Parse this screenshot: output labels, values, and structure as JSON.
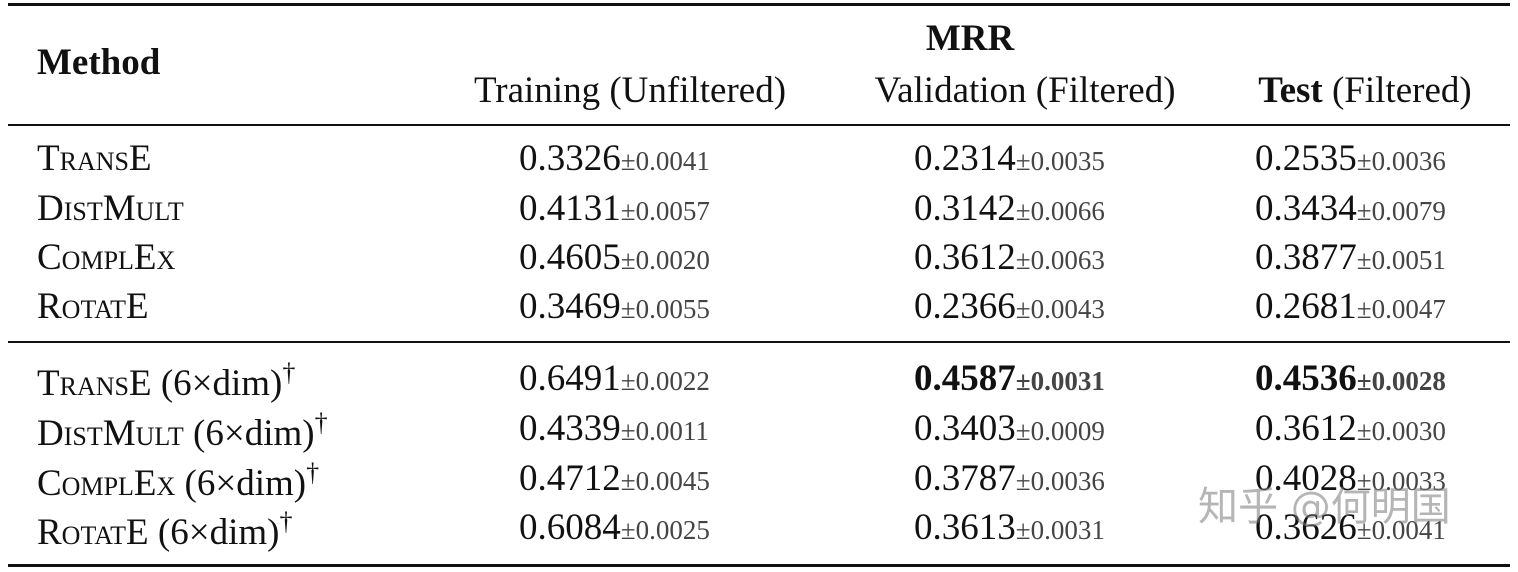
{
  "table": {
    "header": {
      "method": "Method",
      "group": "MRR",
      "columns": [
        {
          "bold": null,
          "text": "Training (Unfiltered)"
        },
        {
          "bold": null,
          "text": "Validation (Filtered)"
        },
        {
          "bold": "Test",
          "text": "(Filtered)"
        }
      ]
    },
    "sections": [
      [
        {
          "method": "TransE",
          "suffix": null,
          "mark": null,
          "cells": [
            {
              "value": "0.3326",
              "std": "±0.0041",
              "bold": false
            },
            {
              "value": "0.2314",
              "std": "±0.0035",
              "bold": false
            },
            {
              "value": "0.2535",
              "std": "±0.0036",
              "bold": false
            }
          ]
        },
        {
          "method": "DistMult",
          "suffix": null,
          "mark": null,
          "cells": [
            {
              "value": "0.4131",
              "std": "±0.0057",
              "bold": false
            },
            {
              "value": "0.3142",
              "std": "±0.0066",
              "bold": false
            },
            {
              "value": "0.3434",
              "std": "±0.0079",
              "bold": false
            }
          ]
        },
        {
          "method": "ComplEx",
          "suffix": null,
          "mark": null,
          "cells": [
            {
              "value": "0.4605",
              "std": "±0.0020",
              "bold": false
            },
            {
              "value": "0.3612",
              "std": "±0.0063",
              "bold": false
            },
            {
              "value": "0.3877",
              "std": "±0.0051",
              "bold": false
            }
          ]
        },
        {
          "method": "RotatE",
          "suffix": null,
          "mark": null,
          "cells": [
            {
              "value": "0.3469",
              "std": "±0.0055",
              "bold": false
            },
            {
              "value": "0.2366",
              "std": "±0.0043",
              "bold": false
            },
            {
              "value": "0.2681",
              "std": "±0.0047",
              "bold": false
            }
          ]
        }
      ],
      [
        {
          "method": "TransE",
          "suffix": "(6×dim)",
          "mark": "†",
          "cells": [
            {
              "value": "0.6491",
              "std": "±0.0022",
              "bold": false
            },
            {
              "value": "0.4587",
              "std": "±0.0031",
              "bold": true
            },
            {
              "value": "0.4536",
              "std": "±0.0028",
              "bold": true
            }
          ]
        },
        {
          "method": "DistMult",
          "suffix": "(6×dim)",
          "mark": "†",
          "cells": [
            {
              "value": "0.4339",
              "std": "±0.0011",
              "bold": false
            },
            {
              "value": "0.3403",
              "std": "±0.0009",
              "bold": false
            },
            {
              "value": "0.3612",
              "std": "±0.0030",
              "bold": false
            }
          ]
        },
        {
          "method": "ComplEx",
          "suffix": "(6×dim)",
          "mark": "†",
          "cells": [
            {
              "value": "0.4712",
              "std": "±0.0045",
              "bold": false
            },
            {
              "value": "0.3787",
              "std": "±0.0036",
              "bold": false
            },
            {
              "value": "0.4028",
              "std": "±0.0033",
              "bold": false
            }
          ]
        },
        {
          "method": "RotatE",
          "suffix": "(6×dim)",
          "mark": "†",
          "cells": [
            {
              "value": "0.6084",
              "std": "±0.0025",
              "bold": false
            },
            {
              "value": "0.3613",
              "std": "±0.0031",
              "bold": false
            },
            {
              "value": "0.3626",
              "std": "±0.0041",
              "bold": false
            }
          ]
        }
      ]
    ]
  },
  "watermark": "知乎 @何明国"
}
